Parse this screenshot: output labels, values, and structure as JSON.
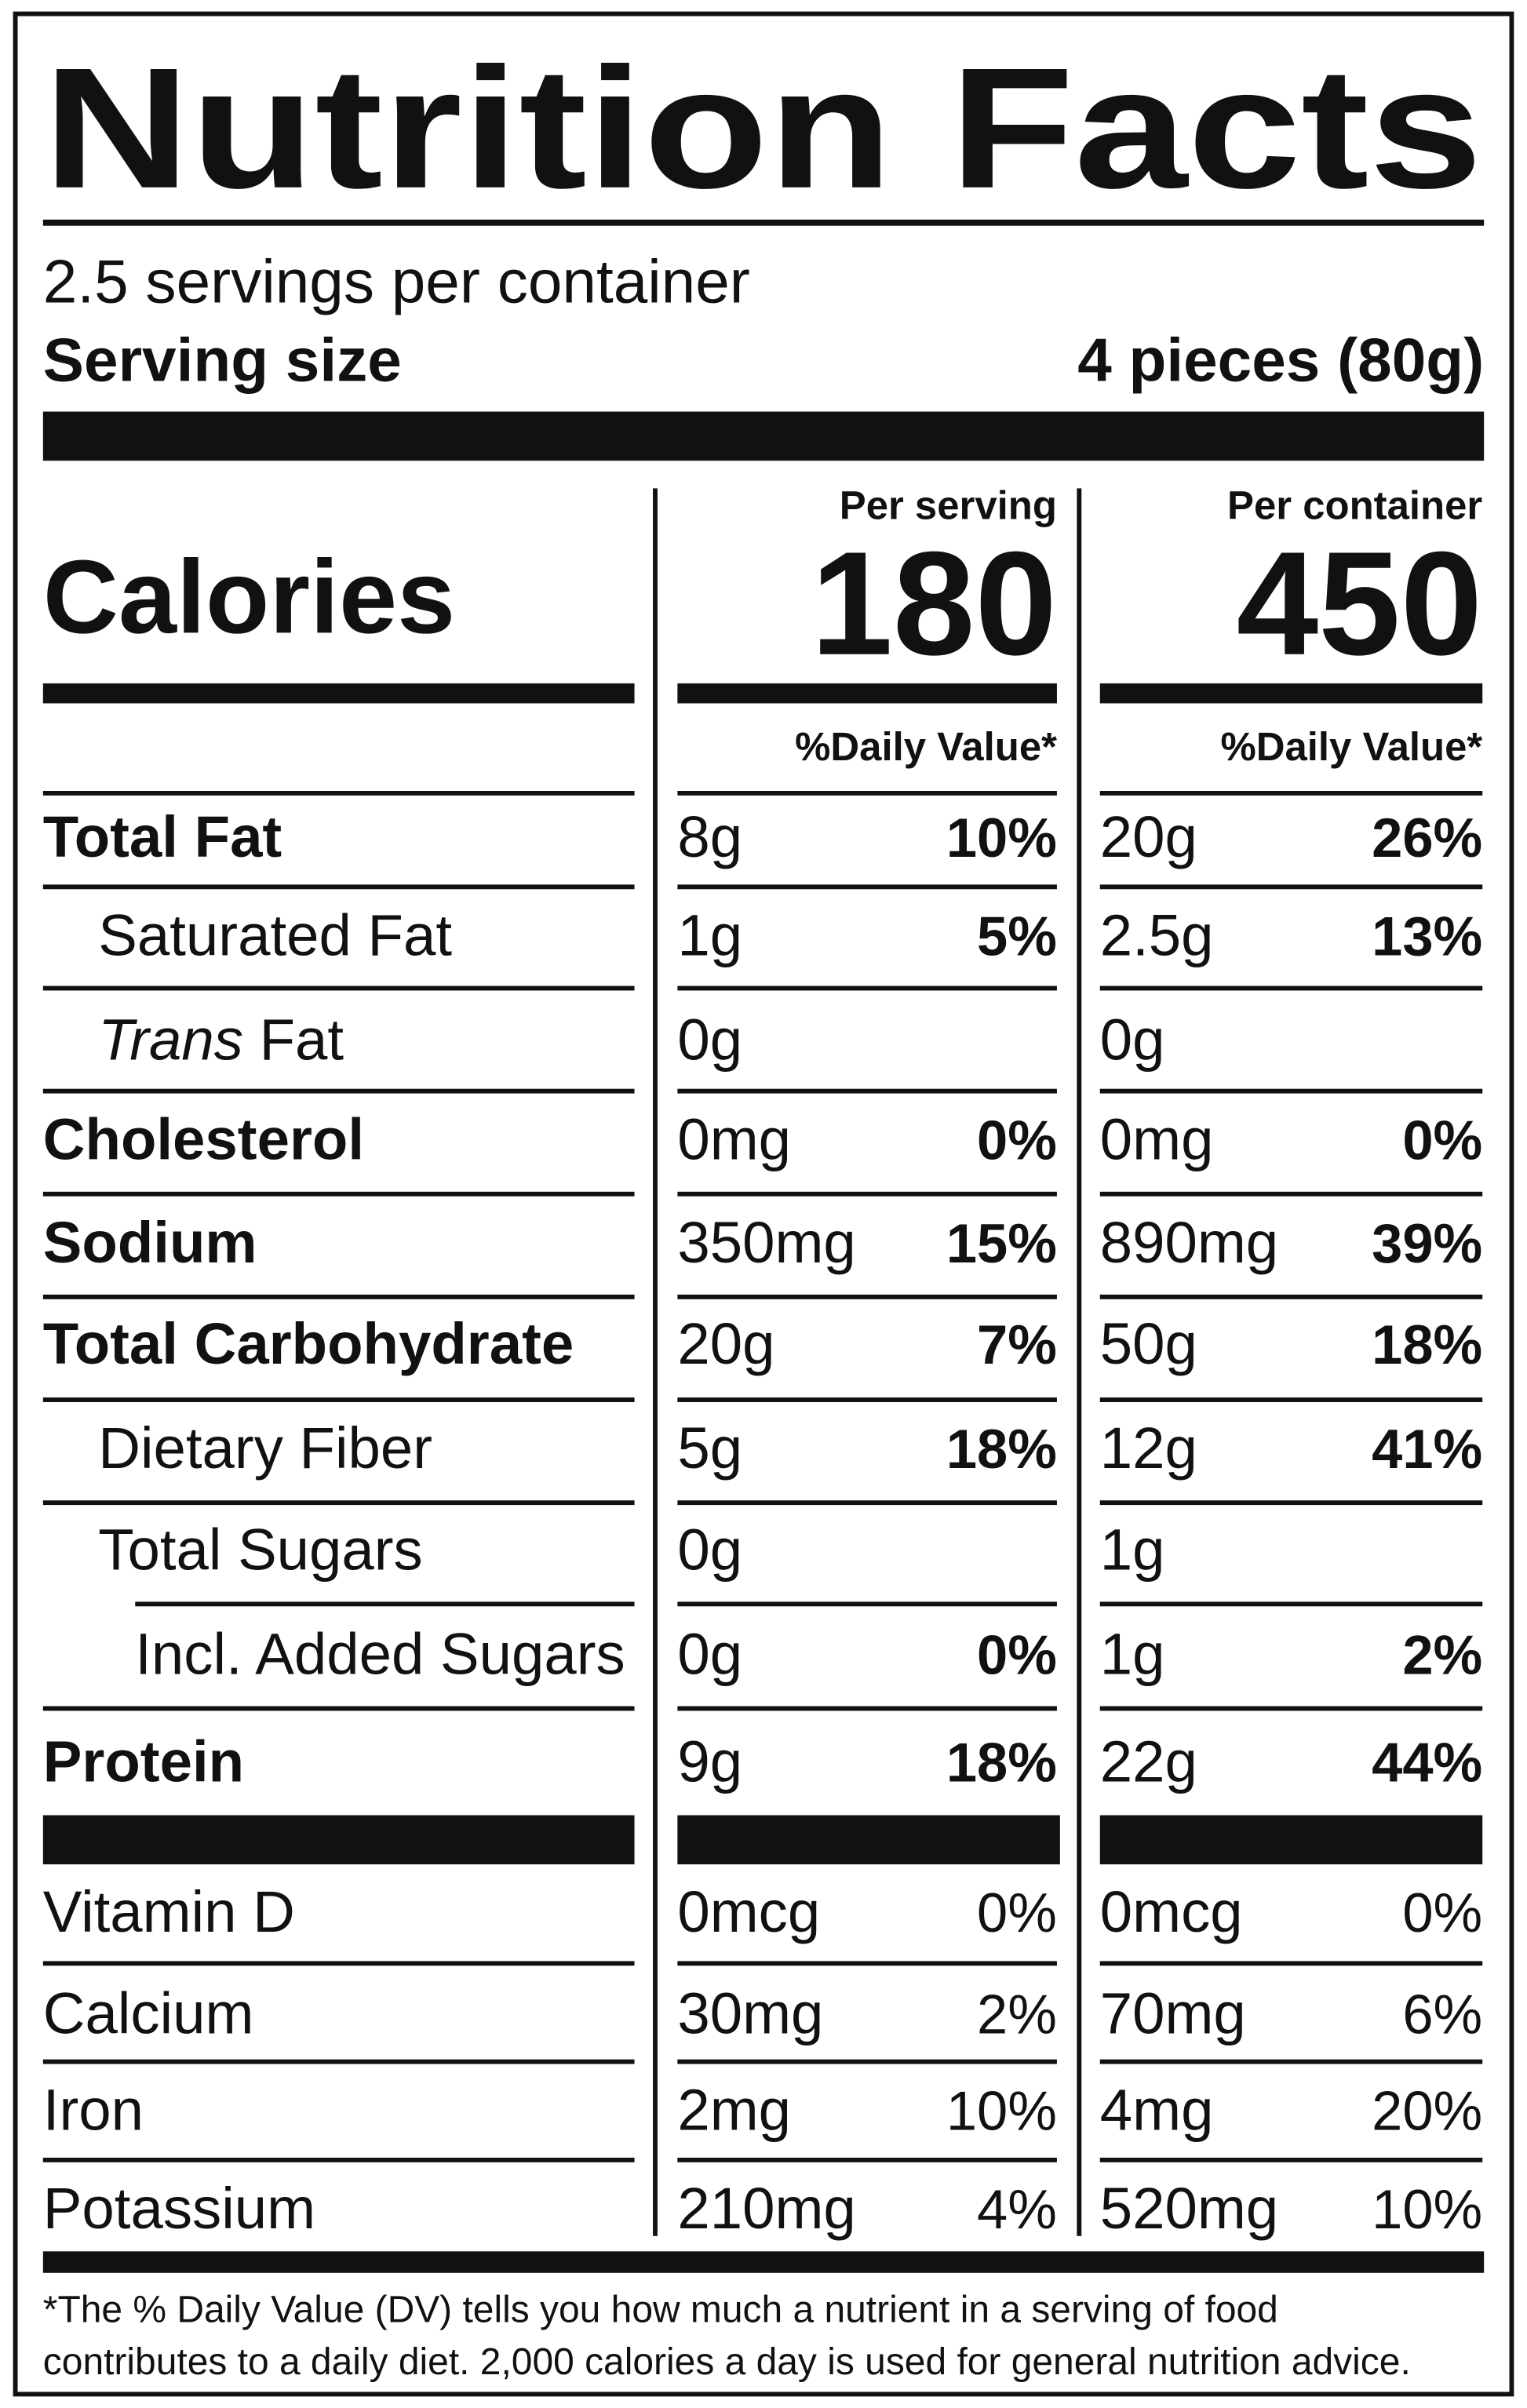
{
  "title": "Nutrition Facts",
  "servings_per_container": "2.5 servings per container",
  "serving_size": {
    "label": "Serving size",
    "value": "4 pieces (80g)"
  },
  "columns": {
    "per_serving": "Per serving",
    "per_container": "Per container"
  },
  "calories": {
    "label": "Calories",
    "per_serving": "180",
    "per_container": "450"
  },
  "daily_value_headers": {
    "per_serving": "%Daily Value*",
    "per_container": "%Daily Value*"
  },
  "nutrients": [
    {
      "label": "Total Fat",
      "serving_amount": "8g",
      "serving_dv": "10%",
      "container_amount": "20g",
      "container_dv": "26%"
    },
    {
      "label": "Saturated Fat",
      "serving_amount": "1g",
      "serving_dv": "5%",
      "container_amount": "2.5g",
      "container_dv": "13%"
    },
    {
      "label_italic": "Trans",
      "label": "Fat",
      "serving_amount": "0g",
      "container_amount": "0g"
    },
    {
      "label": "Cholesterol",
      "serving_amount": "0mg",
      "serving_dv": "0%",
      "container_amount": "0mg",
      "container_dv": "0%"
    },
    {
      "label": "Sodium",
      "serving_amount": "350mg",
      "serving_dv": "15%",
      "container_amount": "890mg",
      "container_dv": "39%"
    },
    {
      "label": "Total Carbohydrate",
      "serving_amount": "20g",
      "serving_dv": "7%",
      "container_amount": "50g",
      "container_dv": "18%"
    },
    {
      "label": "Dietary Fiber",
      "serving_amount": "5g",
      "serving_dv": "18%",
      "container_amount": "12g",
      "container_dv": "41%"
    },
    {
      "label": "Total Sugars",
      "serving_amount": "0g",
      "container_amount": "1g"
    },
    {
      "label": "Incl. Added Sugars",
      "serving_amount": "0g",
      "serving_dv": "0%",
      "container_amount": "1g",
      "container_dv": "2%"
    },
    {
      "label": "Protein",
      "serving_amount": "9g",
      "serving_dv": "18%",
      "container_amount": "22g",
      "container_dv": "44%"
    }
  ],
  "vitamins": [
    {
      "label": "Vitamin D",
      "serving_amount": "0mcg",
      "serving_dv": "0%",
      "container_amount": "0mcg",
      "container_dv": "0%"
    },
    {
      "label": "Calcium",
      "serving_amount": "30mg",
      "serving_dv": "2%",
      "container_amount": "70mg",
      "container_dv": "6%"
    },
    {
      "label": "Iron",
      "serving_amount": "2mg",
      "serving_dv": "10%",
      "container_amount": "4mg",
      "container_dv": "20%"
    },
    {
      "label": "Potassium",
      "serving_amount": "210mg",
      "serving_dv": "4%",
      "container_amount": "520mg",
      "container_dv": "10%"
    }
  ],
  "footnote": [
    "*The % Daily Value (DV) tells you how much a nutrient in a serving of food",
    "contributes to a daily diet. 2,000 calories a day is used for general nutrition advice."
  ]
}
